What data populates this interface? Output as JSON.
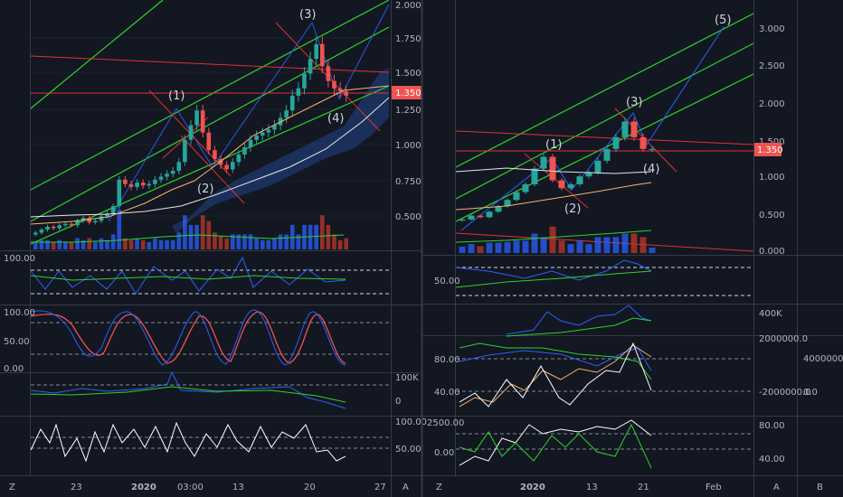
{
  "colors": {
    "background": "#131722",
    "grid": "#1e2230",
    "separator": "#363a45",
    "axis_text": "#b2b5be",
    "up": "#26a69a",
    "down": "#ef5350",
    "vol_up": "#2962ff",
    "vol_down": "#c0392b",
    "channel": "#2bd42b",
    "trend": "#e03131",
    "price_tag": "#f05252"
  },
  "left_panel": {
    "price_label": "1.350",
    "price_ticks": [
      "2.000",
      "1.750",
      "1.500",
      "1.250",
      "1.000",
      "0.750",
      "0.500"
    ],
    "wave_labels": [
      "(1)",
      "(2)",
      "(3)",
      "(4)"
    ],
    "rsi_ticks": [
      "100.00"
    ],
    "stoch_ticks": [
      "100.00",
      "50.00",
      "0.00"
    ],
    "osc_ticks": [
      "100K",
      "0"
    ],
    "mom_ticks": [
      "100.00",
      "50.00"
    ],
    "x_ticks": [
      "23",
      "2020",
      "03:00",
      "13",
      "20",
      "27"
    ],
    "footer_left": "Z",
    "footer_right": "A"
  },
  "right_panel": {
    "price_label": "1.350",
    "price_ticks": [
      "3.000",
      "2.500",
      "2.000",
      "1.500",
      "1.000",
      "0.500",
      "0.000"
    ],
    "wave_labels": [
      "(1)",
      "(2)",
      "(3)",
      "(4)",
      "(5)"
    ],
    "rsi_ticks": [
      "50.00"
    ],
    "vol_ticks": [
      "400K"
    ],
    "osc_ticks": [
      "80.00",
      "40.00"
    ],
    "osc_right_ticks": [
      "2000000.0",
      "-2000000.0"
    ],
    "osc_far_ticks": [
      "4000000.0",
      "0.0"
    ],
    "mom_ticks": [
      "2500.00",
      "0.00"
    ],
    "mom_right_ticks": [
      "80.00",
      "40.00"
    ],
    "x_ticks": [
      "2020",
      "13",
      "21",
      "Feb"
    ],
    "footer_left": "Z",
    "footer_mid": "A",
    "footer_right": "B"
  },
  "chart_data": [
    {
      "type": "candlestick",
      "title": "",
      "ylim": [
        0.3,
        2.0
      ],
      "x_labels": [
        "23",
        "2020",
        "03:00",
        "13",
        "20",
        "27"
      ],
      "close": [
        0.42,
        0.44,
        0.46,
        0.45,
        0.47,
        0.48,
        0.47,
        0.5,
        0.52,
        0.49,
        0.5,
        0.53,
        0.55,
        0.6,
        0.78,
        0.75,
        0.73,
        0.76,
        0.74,
        0.75,
        0.78,
        0.8,
        0.82,
        0.84,
        0.9,
        1.05,
        1.15,
        1.25,
        1.1,
        0.98,
        0.92,
        0.88,
        0.85,
        0.9,
        0.95,
        1.0,
        1.05,
        1.08,
        1.1,
        1.12,
        1.15,
        1.2,
        1.25,
        1.35,
        1.4,
        1.5,
        1.6,
        1.7,
        1.55,
        1.45,
        1.4,
        1.38,
        1.35
      ],
      "annotations": [
        "(1)",
        "(2)",
        "(3)",
        "(4)"
      ]
    },
    {
      "type": "candlestick",
      "title": "",
      "ylim": [
        0.0,
        3.25
      ],
      "x_labels": [
        "2020",
        "13",
        "21",
        "Feb"
      ],
      "close": [
        0.45,
        0.5,
        0.48,
        0.55,
        0.62,
        0.7,
        0.8,
        0.9,
        1.1,
        1.25,
        0.95,
        0.85,
        0.9,
        1.0,
        1.05,
        1.2,
        1.35,
        1.5,
        1.7,
        1.5,
        1.35,
        1.35
      ],
      "annotations": [
        "(1)",
        "(2)",
        "(3)",
        "(4)",
        "(5)"
      ]
    }
  ]
}
